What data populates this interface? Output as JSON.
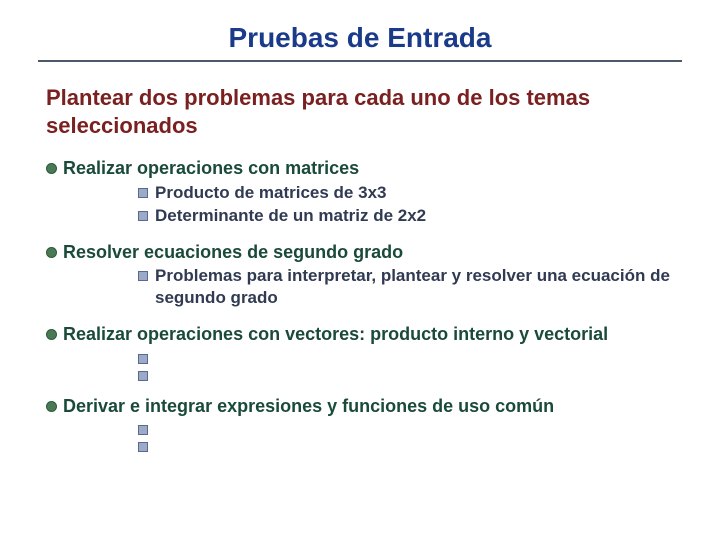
{
  "colors": {
    "title": "#1a3a8a",
    "heading": "#7a2020",
    "topic_text": "#1a4a3a",
    "sub_text": "#303a52",
    "bullet_dot_fill": "#4a7a55",
    "bullet_dot_border": "#2a5a38",
    "bullet_sq_fill": "#9aaac8",
    "bullet_sq_border": "#5a6a8a",
    "rule": "#4a5a6a"
  },
  "typography": {
    "title_fontsize": 28,
    "heading_fontsize": 22,
    "topic_fontsize": 18,
    "sub_fontsize": 17,
    "font_family": "Verdana"
  },
  "title": "Pruebas de Entrada",
  "heading": "Plantear dos problemas para cada uno de los temas seleccionados",
  "topics": [
    {
      "label": "Realizar operaciones con matrices",
      "subs": [
        "Producto de matrices de 3x3",
        "Determinante de un matriz de 2x2"
      ]
    },
    {
      "label": "Resolver ecuaciones de segundo grado",
      "subs": [
        "Problemas para interpretar, plantear y resolver una ecuación de segundo grado"
      ]
    },
    {
      "label": "Realizar operaciones con vectores: producto interno y vectorial",
      "subs": [
        "",
        ""
      ]
    },
    {
      "label": "Derivar e integrar expresiones y funciones de uso común",
      "subs": [
        "",
        ""
      ]
    }
  ]
}
